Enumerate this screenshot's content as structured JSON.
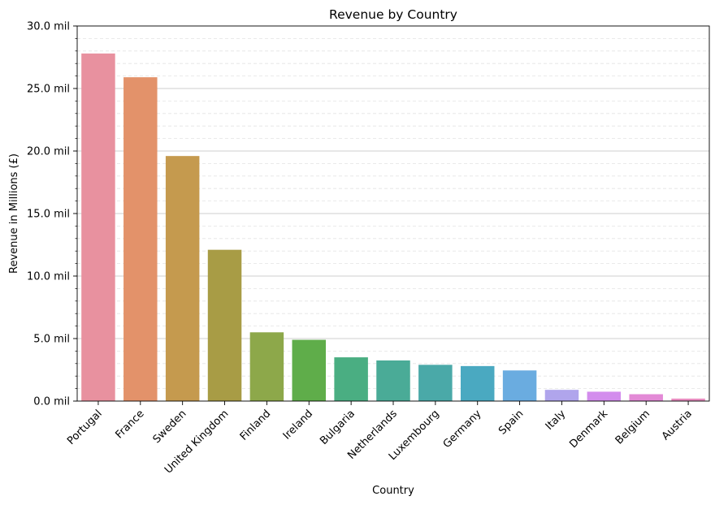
{
  "chart_data": {
    "type": "bar",
    "title": "Revenue by Country",
    "xlabel": "Country",
    "ylabel": "Revenue in Millions (£)",
    "ylim": [
      0,
      30
    ],
    "y_ticks": [
      "0.0 mil",
      "5.0 mil",
      "10.0 mil",
      "15.0 mil",
      "20.0 mil",
      "25.0 mil",
      "30.0 mil"
    ],
    "y_minor_step": 1,
    "grid": "major solid, minor dashed (y-axis)",
    "categories": [
      "Portugal",
      "France",
      "Sweden",
      "United Kingdom",
      "Finland",
      "Ireland",
      "Bulgaria",
      "Netherlands",
      "Luxembourg",
      "Germany",
      "Spain",
      "Italy",
      "Denmark",
      "Belgium",
      "Austria"
    ],
    "values": [
      27.8,
      25.9,
      19.6,
      12.1,
      5.5,
      4.9,
      3.5,
      3.25,
      2.9,
      2.8,
      2.45,
      0.9,
      0.75,
      0.55,
      0.2
    ],
    "colors": [
      "#e8919f",
      "#e3926a",
      "#c59a4e",
      "#a89c45",
      "#8da84a",
      "#5fad4a",
      "#4aae82",
      "#4aab97",
      "#4aa9a8",
      "#4aa9c1",
      "#6aace0",
      "#b0a5ec",
      "#d38ded",
      "#e38ad6",
      "#e88dc0"
    ]
  }
}
